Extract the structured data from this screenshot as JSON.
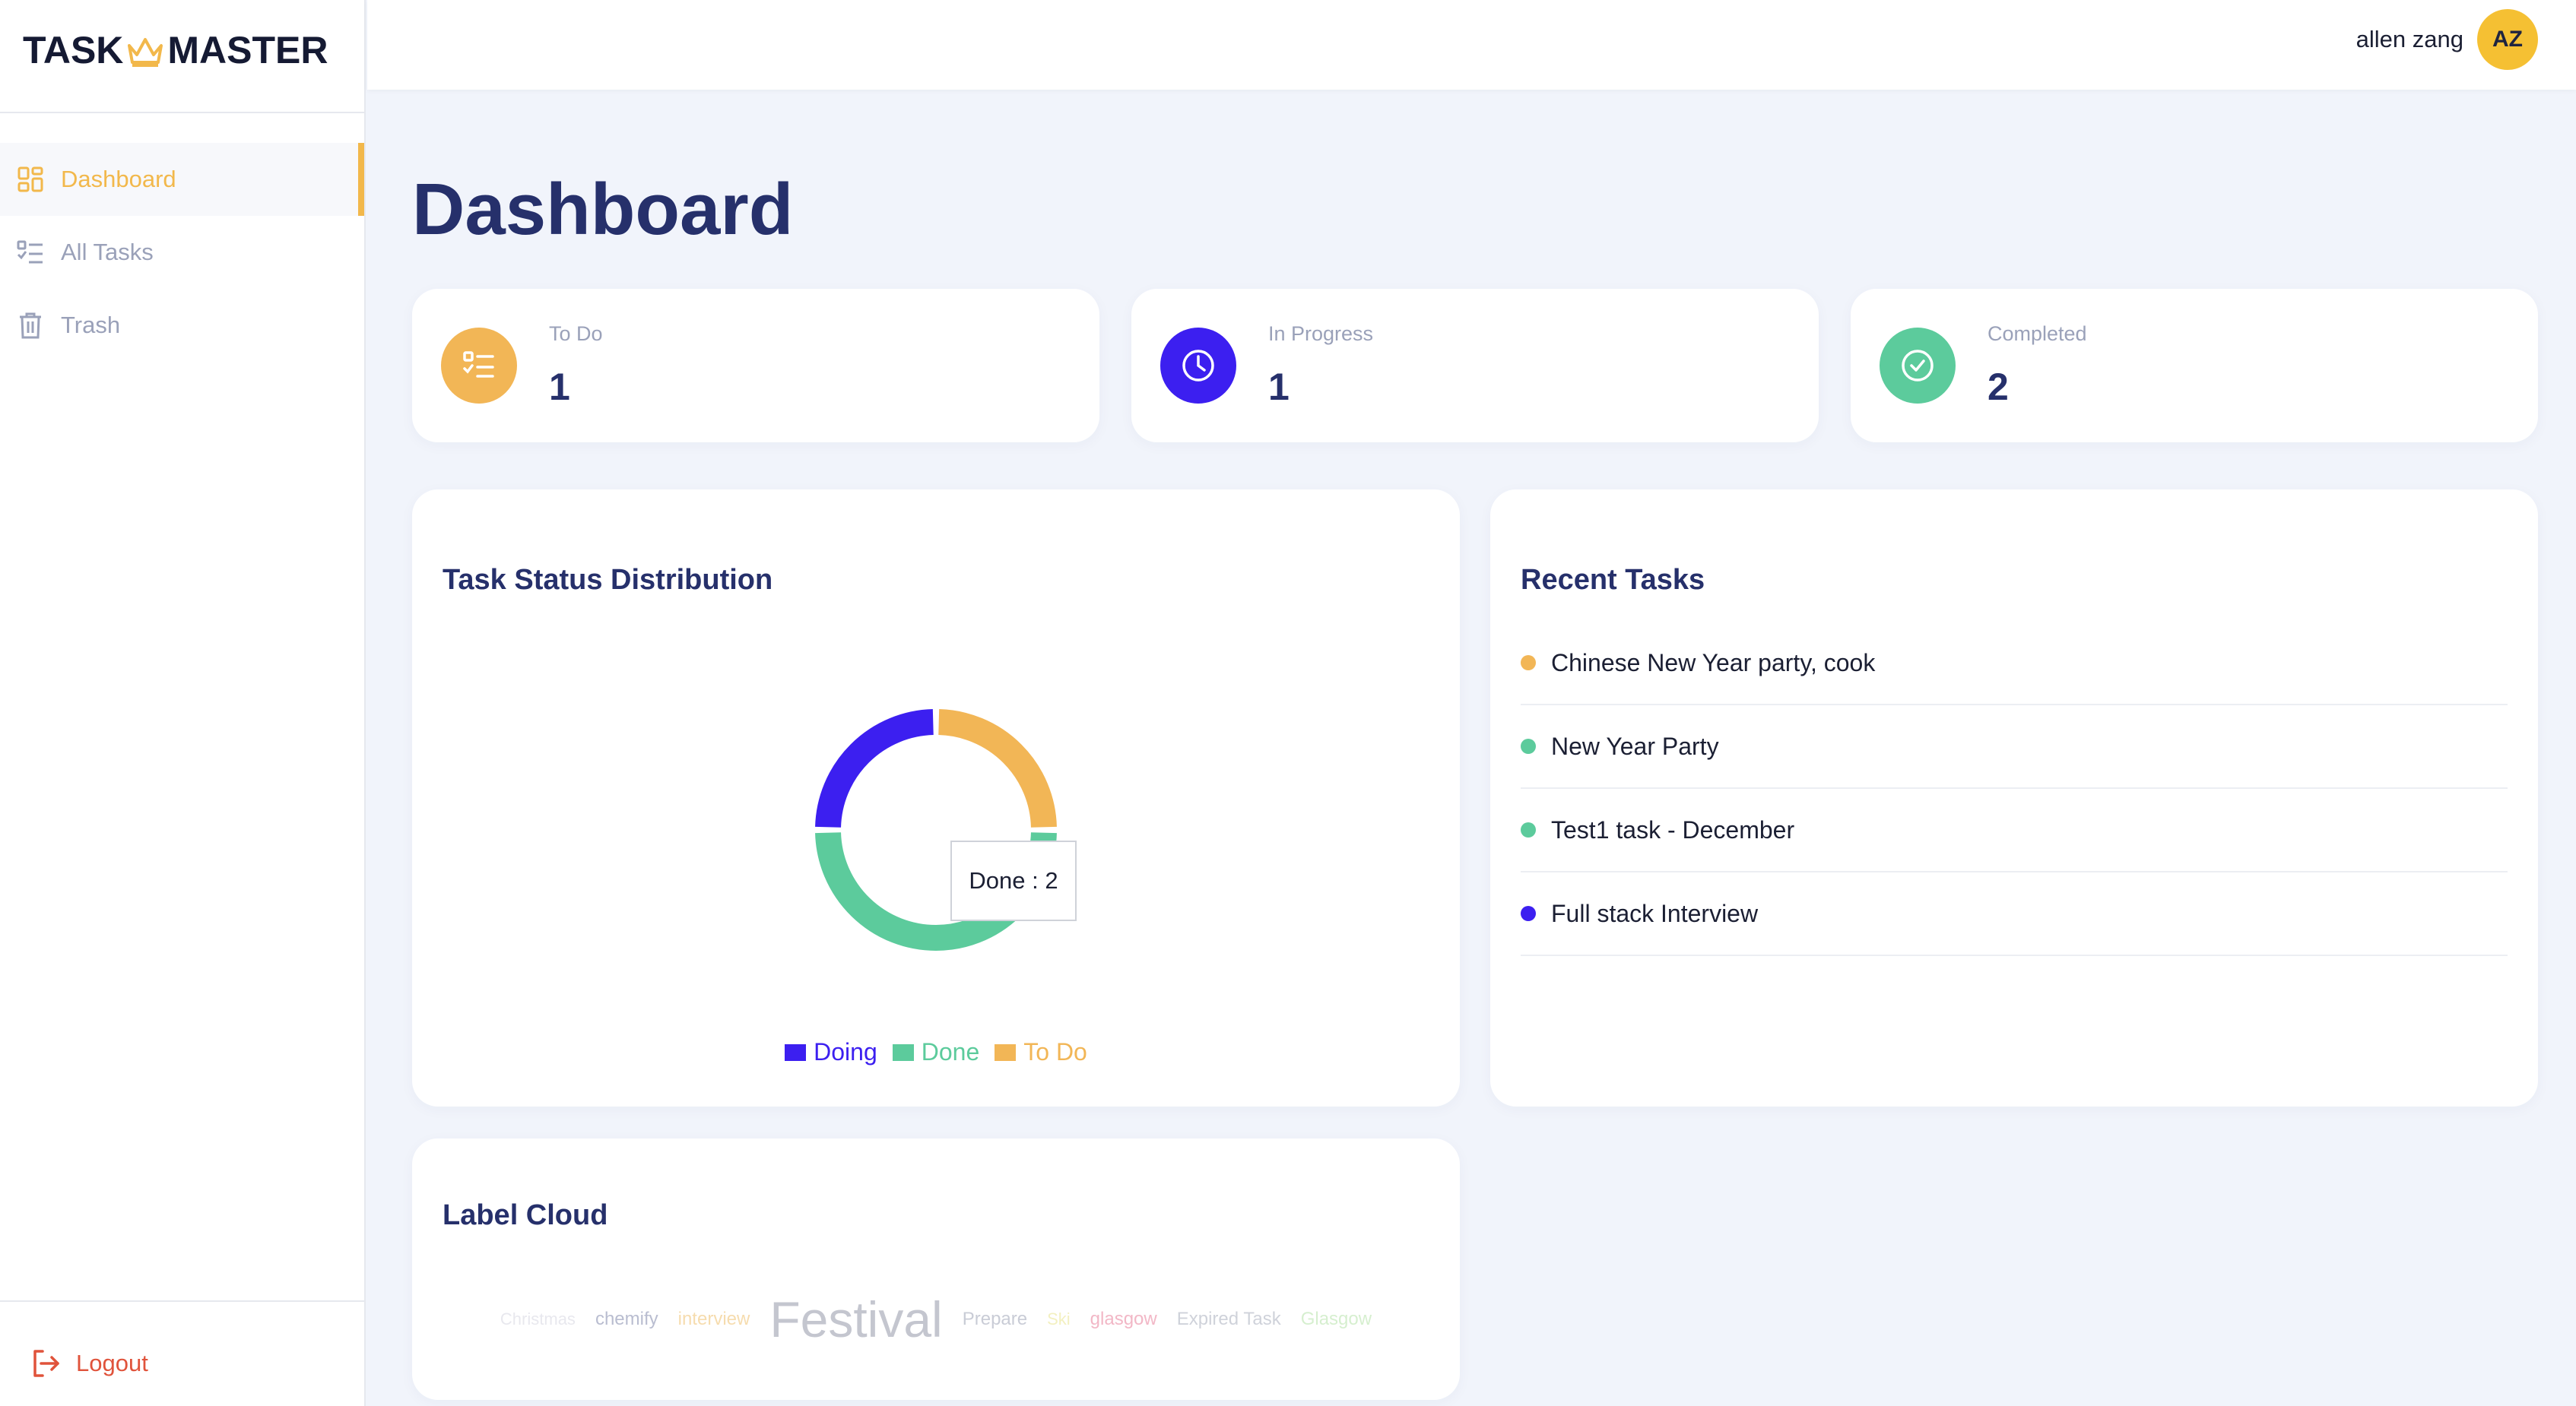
{
  "app": {
    "logo_left": "TASK",
    "logo_right": "MASTER"
  },
  "sidebar": {
    "items": [
      {
        "label": "Dashboard",
        "icon": "dashboard-icon",
        "active": true
      },
      {
        "label": "All Tasks",
        "icon": "checklist-icon",
        "active": false
      },
      {
        "label": "Trash",
        "icon": "trash-icon",
        "active": false
      }
    ],
    "logout_label": "Logout"
  },
  "header": {
    "user_name": "allen zang",
    "avatar_initials": "AZ"
  },
  "page": {
    "title": "Dashboard"
  },
  "stats": [
    {
      "label": "To Do",
      "value": "1",
      "icon": "list-icon",
      "color": "#f2b656"
    },
    {
      "label": "In Progress",
      "value": "1",
      "icon": "clock-icon",
      "color": "#3c1ff0"
    },
    {
      "label": "Completed",
      "value": "2",
      "icon": "check-circle-icon",
      "color": "#5ccb9c"
    }
  ],
  "distribution": {
    "title": "Task Status Distribution",
    "tooltip": "Done : 2"
  },
  "chart_data": {
    "type": "pie",
    "donut": true,
    "categories": [
      "Doing",
      "Done",
      "To Do"
    ],
    "values": [
      1,
      2,
      1
    ],
    "colors": [
      "#3c1ff0",
      "#5ccb9c",
      "#f2b656"
    ],
    "legend_placement": "bottom"
  },
  "recent": {
    "title": "Recent Tasks",
    "tasks": [
      {
        "text": "Chinese New Year party, cook",
        "color": "#f2b656"
      },
      {
        "text": "New Year Party",
        "color": "#5ccb9c"
      },
      {
        "text": "Test1 task - December",
        "color": "#5ccb9c"
      },
      {
        "text": "Full stack Interview",
        "color": "#3c1ff0"
      }
    ]
  },
  "cloud": {
    "title": "Label Cloud",
    "labels": [
      {
        "text": "Christmas",
        "color": "#e8e8ee"
      },
      {
        "text": "chemify",
        "color": "#b9bdd0"
      },
      {
        "text": "interview",
        "color": "#f6dcae"
      },
      {
        "text": "Festival",
        "color": "#c4c6cf"
      },
      {
        "text": "Prepare",
        "color": "#c9ccd6"
      },
      {
        "text": "Ski",
        "color": "#f3f0c0"
      },
      {
        "text": "glasgow",
        "color": "#f2b7c6"
      },
      {
        "text": "Expired Task",
        "color": "#cfd2da"
      },
      {
        "text": "Glasgow",
        "color": "#d6efcf"
      }
    ]
  }
}
